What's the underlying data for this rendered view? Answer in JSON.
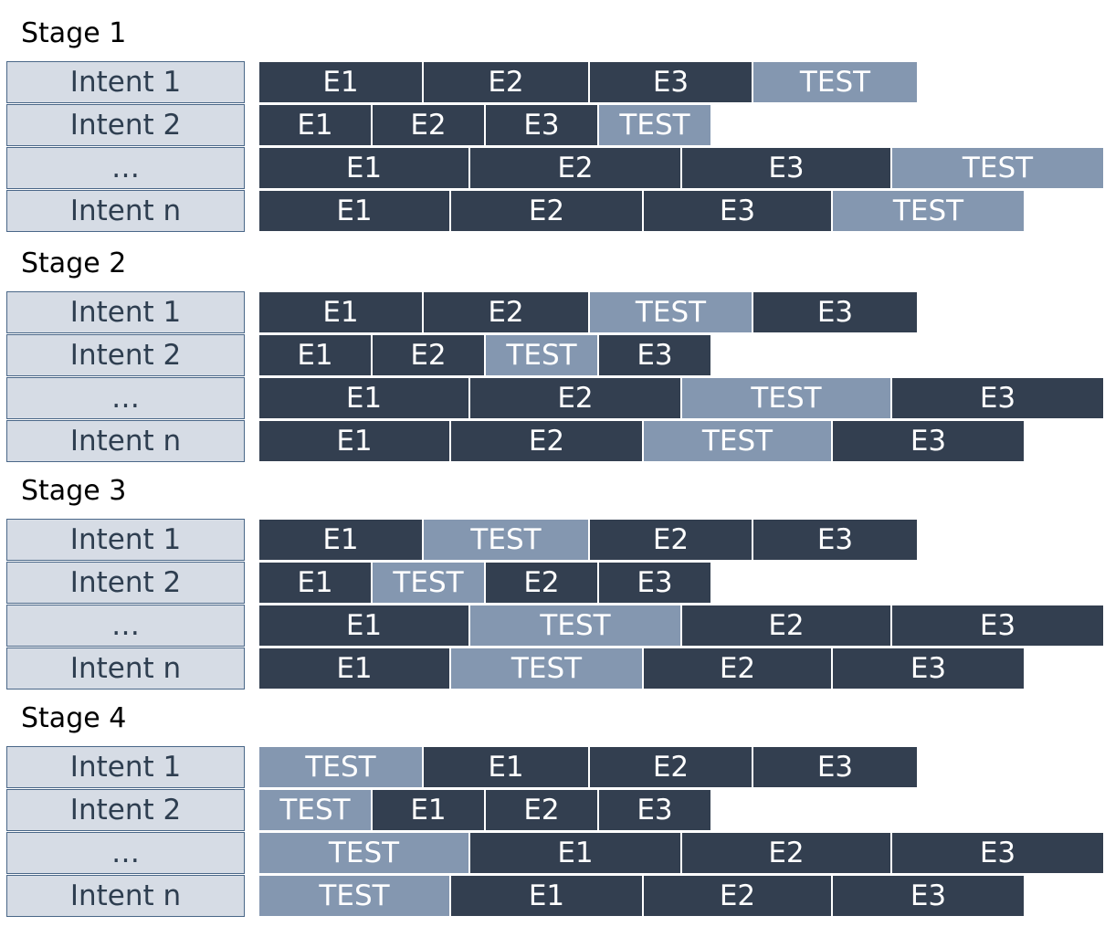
{
  "colors": {
    "epoch": "#333f50",
    "test": "#8497b0",
    "label_fill": "#d6dce5",
    "label_border": "#4a6788",
    "label_text": "#2e3e50"
  },
  "stages": [
    {
      "title": "Stage 1",
      "rows": [
        {
          "label": "Intent 1",
          "segments": [
            "E1",
            "E2",
            "E3",
            "TEST"
          ]
        },
        {
          "label": "Intent 2",
          "segments": [
            "E1",
            "E2",
            "E3",
            "TEST"
          ]
        },
        {
          "label": "…",
          "segments": [
            "E1",
            "E2",
            "E3",
            "TEST"
          ]
        },
        {
          "label": "Intent n",
          "segments": [
            "E1",
            "E2",
            "E3",
            "TEST"
          ]
        }
      ]
    },
    {
      "title": "Stage 2",
      "rows": [
        {
          "label": "Intent 1",
          "segments": [
            "E1",
            "E2",
            "TEST",
            "E3"
          ]
        },
        {
          "label": "Intent 2",
          "segments": [
            "E1",
            "E2",
            "TEST",
            "E3"
          ]
        },
        {
          "label": "…",
          "segments": [
            "E1",
            "E2",
            "TEST",
            "E3"
          ]
        },
        {
          "label": "Intent n",
          "segments": [
            "E1",
            "E2",
            "TEST",
            "E3"
          ]
        }
      ]
    },
    {
      "title": "Stage 3",
      "rows": [
        {
          "label": "Intent 1",
          "segments": [
            "E1",
            "TEST",
            "E2",
            "E3"
          ]
        },
        {
          "label": "Intent 2",
          "segments": [
            "E1",
            "TEST",
            "E2",
            "E3"
          ]
        },
        {
          "label": "…",
          "segments": [
            "E1",
            "TEST",
            "E2",
            "E3"
          ]
        },
        {
          "label": "Intent n",
          "segments": [
            "E1",
            "TEST",
            "E2",
            "E3"
          ]
        }
      ]
    },
    {
      "title": "Stage 4",
      "rows": [
        {
          "label": "Intent 1",
          "segments": [
            "TEST",
            "E1",
            "E2",
            "E3"
          ]
        },
        {
          "label": "Intent 2",
          "segments": [
            "TEST",
            "E1",
            "E2",
            "E3"
          ]
        },
        {
          "label": "…",
          "segments": [
            "TEST",
            "E1",
            "E2",
            "E3"
          ]
        },
        {
          "label": "Intent n",
          "segments": [
            "TEST",
            "E1",
            "E2",
            "E3"
          ]
        }
      ]
    }
  ]
}
